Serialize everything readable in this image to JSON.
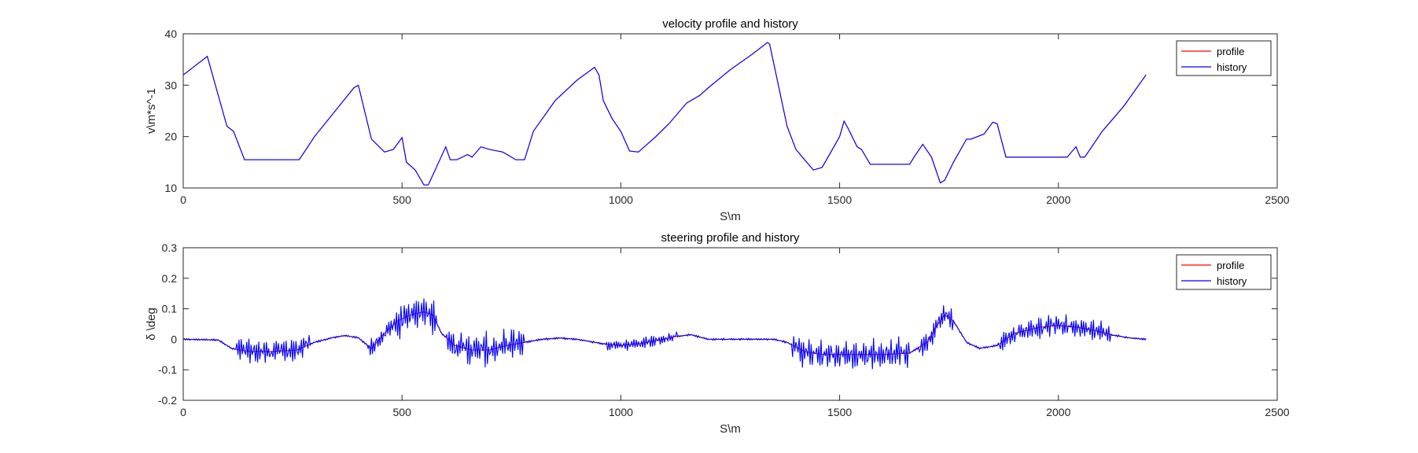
{
  "chart_data": [
    {
      "type": "line",
      "title": "velocity profile and history",
      "xlabel": "S\\m",
      "ylabel": "v\\m*s^-1",
      "xlim": [
        0,
        2500
      ],
      "ylim": [
        10,
        40
      ],
      "xticks": [
        0,
        500,
        1000,
        1500,
        2000,
        2500
      ],
      "yticks": [
        10,
        20,
        30,
        40
      ],
      "legend_position": "top-right",
      "grid": false,
      "series": [
        {
          "name": "profile",
          "color": "#ff0000",
          "x": [
            0,
            55,
            100,
            115,
            140,
            265,
            300,
            390,
            400,
            430,
            460,
            480,
            500,
            510,
            530,
            550,
            560,
            600,
            610,
            625,
            650,
            660,
            680,
            700,
            730,
            760,
            780,
            800,
            850,
            900,
            940,
            950,
            960,
            980,
            1000,
            1020,
            1040,
            1060,
            1080,
            1110,
            1150,
            1180,
            1200,
            1250,
            1300,
            1335,
            1340,
            1360,
            1380,
            1400,
            1420,
            1440,
            1460,
            1480,
            1500,
            1510,
            1520,
            1540,
            1550,
            1570,
            1620,
            1660,
            1670,
            1690,
            1710,
            1730,
            1740,
            1760,
            1790,
            1800,
            1830,
            1850,
            1860,
            1880,
            1960,
            2020,
            2040,
            2050,
            2060,
            2100,
            2150,
            2200
          ],
          "y": [
            32,
            35.6,
            22,
            21,
            15.5,
            15.5,
            20,
            29.5,
            30,
            19.5,
            17,
            17.5,
            19.8,
            15,
            13.5,
            10.6,
            10.6,
            18,
            15.5,
            15.5,
            16.5,
            16,
            18,
            17.5,
            17,
            15.5,
            15.5,
            21,
            27,
            31,
            33.5,
            32,
            27,
            23.5,
            21,
            17.2,
            17,
            18.5,
            20,
            22.5,
            26.5,
            28,
            29.5,
            33,
            36,
            38.3,
            38,
            30,
            22,
            17.5,
            15.5,
            13.5,
            14,
            17,
            20,
            23,
            21.5,
            18,
            17.5,
            14.6,
            14.6,
            14.6,
            16,
            18.5,
            16,
            11,
            11.5,
            15,
            19.5,
            19.5,
            20.5,
            22.8,
            22.5,
            16,
            16,
            16,
            18,
            16,
            16,
            21,
            26,
            32
          ]
        },
        {
          "name": "history",
          "color": "#0000ff",
          "x": [
            0,
            55,
            100,
            115,
            140,
            265,
            300,
            390,
            400,
            430,
            460,
            480,
            500,
            510,
            530,
            550,
            560,
            600,
            610,
            625,
            650,
            660,
            680,
            700,
            730,
            760,
            780,
            800,
            850,
            900,
            940,
            950,
            960,
            980,
            1000,
            1020,
            1040,
            1060,
            1080,
            1110,
            1150,
            1180,
            1200,
            1250,
            1300,
            1335,
            1340,
            1360,
            1380,
            1400,
            1420,
            1440,
            1460,
            1480,
            1500,
            1510,
            1520,
            1540,
            1550,
            1570,
            1620,
            1660,
            1670,
            1690,
            1710,
            1730,
            1740,
            1760,
            1790,
            1800,
            1830,
            1850,
            1860,
            1880,
            1960,
            2020,
            2040,
            2050,
            2060,
            2100,
            2150,
            2200
          ],
          "y": [
            32,
            35.6,
            22,
            21,
            15.5,
            15.5,
            20,
            29.5,
            30,
            19.5,
            17,
            17.5,
            19.8,
            15,
            13.5,
            10.6,
            10.6,
            18,
            15.5,
            15.5,
            16.5,
            16,
            18,
            17.5,
            17,
            15.5,
            15.5,
            21,
            27,
            31,
            33.5,
            32,
            27,
            23.5,
            21,
            17.2,
            17,
            18.5,
            20,
            22.5,
            26.5,
            28,
            29.5,
            33,
            36,
            38.3,
            38,
            30,
            22,
            17.5,
            15.5,
            13.5,
            14,
            17,
            20,
            23,
            21.5,
            18,
            17.5,
            14.6,
            14.6,
            14.6,
            16,
            18.5,
            16,
            11,
            11.5,
            15,
            19.5,
            19.5,
            20.5,
            22.8,
            22.5,
            16,
            16,
            16,
            18,
            16,
            16,
            21,
            26,
            32
          ]
        }
      ]
    },
    {
      "type": "line",
      "title": "steering profile and history",
      "xlabel": "S\\m",
      "ylabel": "δ \\deg",
      "xlim": [
        0,
        2500
      ],
      "ylim": [
        -0.2,
        0.3
      ],
      "xticks": [
        0,
        500,
        1000,
        1500,
        2000,
        2500
      ],
      "yticks": [
        -0.2,
        -0.1,
        0,
        0.1,
        0.2,
        0.3
      ],
      "legend_position": "top-right",
      "grid": false,
      "series": [
        {
          "name": "profile",
          "color": "#ff0000",
          "x": [
            0,
            80,
            110,
            150,
            200,
            260,
            300,
            340,
            370,
            400,
            430,
            460,
            490,
            520,
            550,
            570,
            590,
            620,
            660,
            700,
            740,
            780,
            820,
            860,
            900,
            960,
            1000,
            1040,
            1080,
            1120,
            1160,
            1200,
            1250,
            1300,
            1350,
            1380,
            1420,
            1460,
            1500,
            1550,
            1600,
            1660,
            1700,
            1720,
            1740,
            1760,
            1790,
            1820,
            1860,
            1900,
            1960,
            2000,
            2040,
            2080,
            2120,
            2160,
            2200
          ],
          "y": [
            0,
            -0.002,
            -0.03,
            -0.04,
            -0.04,
            -0.035,
            -0.01,
            0.005,
            0.012,
            0.005,
            -0.03,
            0.02,
            0.06,
            0.08,
            0.09,
            0.08,
            0.02,
            -0.02,
            -0.035,
            -0.035,
            -0.02,
            -0.01,
            0,
            0.004,
            0,
            -0.015,
            -0.02,
            -0.015,
            -0.005,
            0.008,
            0.015,
            0,
            0,
            0,
            0,
            -0.01,
            -0.04,
            -0.05,
            -0.05,
            -0.05,
            -0.05,
            -0.045,
            -0.01,
            0.04,
            0.08,
            0.06,
            -0.01,
            -0.03,
            -0.02,
            0.02,
            0.04,
            0.045,
            0.04,
            0.03,
            0.015,
            0.005,
            0
          ]
        },
        {
          "name": "history",
          "color": "#0000ff",
          "x": [],
          "y": []
        }
      ]
    }
  ]
}
